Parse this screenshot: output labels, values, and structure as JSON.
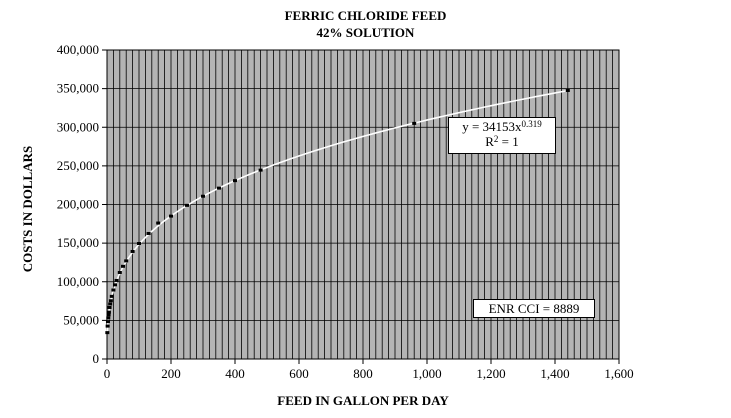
{
  "chart_data": {
    "type": "scatter",
    "title": "FERRIC CHLORIDE FEED",
    "subtitle": "42% SOLUTION",
    "xlabel": "FEED IN GALLON PER DAY",
    "ylabel": "COSTS IN DOLLARS",
    "xlim": [
      0,
      1600
    ],
    "ylim": [
      0,
      400000
    ],
    "x_ticks": [
      "0",
      "200",
      "400",
      "600",
      "800",
      "1,000",
      "1,200",
      "1,400",
      "1,600"
    ],
    "y_ticks": [
      "0",
      "50,000",
      "100,000",
      "150,000",
      "200,000",
      "250,000",
      "300,000",
      "350,000",
      "400,000"
    ],
    "grid": true,
    "plot_background": "#b4b4b4",
    "series": [
      {
        "type": "scatter",
        "color": "#000000",
        "x": [
          1,
          2,
          3,
          4,
          5,
          6,
          8,
          10,
          12,
          15,
          20,
          25,
          30,
          40,
          50,
          60,
          80,
          100,
          130,
          160,
          200,
          250,
          300,
          350,
          400,
          480,
          960,
          1440
        ],
        "y": [
          34153,
          42600,
          48400,
          53100,
          57100,
          60600,
          66700,
          71200,
          75400,
          81100,
          89300,
          96000,
          101700,
          112000,
          120000,
          127000,
          139200,
          149500,
          162500,
          176000,
          185000,
          198900,
          210700,
          221200,
          230900,
          244500,
          305000,
          347600
        ]
      },
      {
        "type": "trendline",
        "color": "#ffffff",
        "coefficient": 34153,
        "exponent": 0.319,
        "x_range": [
          1,
          1440
        ]
      }
    ],
    "annotations": {
      "equation_prefix": "y = 34153x",
      "equation_exponent": "0.319",
      "r2_prefix": "R",
      "r2_exponent": "2",
      "r2_suffix": " = 1",
      "enr": "ENR CCI = 8889"
    }
  }
}
